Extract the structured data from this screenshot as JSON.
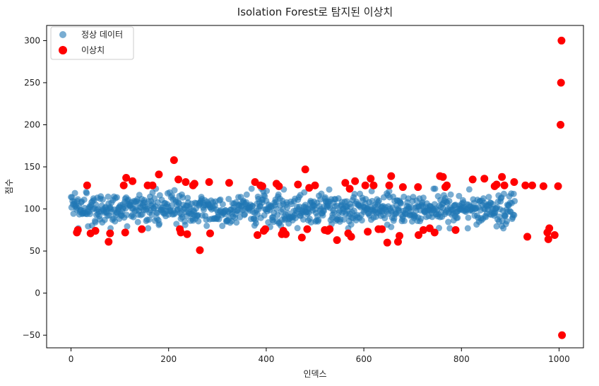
{
  "chart_data": {
    "type": "scatter",
    "title": "Isolation Forest로 탐지된 이상치",
    "xlabel": "인덱스",
    "ylabel": "점수",
    "xlim": [
      -50,
      1050
    ],
    "ylim": [
      -65,
      318
    ],
    "x_ticks": [
      0,
      200,
      400,
      600,
      800,
      1000
    ],
    "y_ticks": [
      -50,
      0,
      50,
      100,
      150,
      200,
      250,
      300
    ],
    "grid": false,
    "legend_position": "top-left",
    "normal_series": {
      "name": "정상 데이터",
      "color": "#1f77b4",
      "count": 910,
      "index_range": [
        0,
        909
      ],
      "score_mean": 100,
      "score_range": [
        77,
        124
      ]
    },
    "outlier_series": {
      "name": "이상치",
      "color": "#ff0000",
      "points": [
        [
          12,
          72
        ],
        [
          14,
          75
        ],
        [
          33,
          128
        ],
        [
          40,
          71
        ],
        [
          50,
          74
        ],
        [
          77,
          61
        ],
        [
          80,
          71
        ],
        [
          108,
          128
        ],
        [
          111,
          72
        ],
        [
          113,
          137
        ],
        [
          126,
          133
        ],
        [
          145,
          76
        ],
        [
          157,
          128
        ],
        [
          167,
          128
        ],
        [
          180,
          141
        ],
        [
          211,
          158
        ],
        [
          220,
          135
        ],
        [
          223,
          76
        ],
        [
          225,
          72
        ],
        [
          235,
          132
        ],
        [
          238,
          70
        ],
        [
          250,
          128
        ],
        [
          253,
          130
        ],
        [
          264,
          51
        ],
        [
          283,
          132
        ],
        [
          285,
          71
        ],
        [
          324,
          131
        ],
        [
          377,
          132
        ],
        [
          382,
          69
        ],
        [
          388,
          128
        ],
        [
          392,
          127
        ],
        [
          395,
          74
        ],
        [
          398,
          76
        ],
        [
          421,
          130
        ],
        [
          426,
          127
        ],
        [
          432,
          70
        ],
        [
          435,
          74
        ],
        [
          440,
          70
        ],
        [
          465,
          129
        ],
        [
          473,
          66
        ],
        [
          480,
          147
        ],
        [
          484,
          76
        ],
        [
          488,
          125
        ],
        [
          500,
          128
        ],
        [
          520,
          75
        ],
        [
          526,
          74
        ],
        [
          530,
          76
        ],
        [
          545,
          63
        ],
        [
          562,
          131
        ],
        [
          568,
          71
        ],
        [
          571,
          124
        ],
        [
          574,
          67
        ],
        [
          582,
          133
        ],
        [
          603,
          128
        ],
        [
          608,
          73
        ],
        [
          614,
          136
        ],
        [
          620,
          128
        ],
        [
          630,
          76
        ],
        [
          637,
          76
        ],
        [
          648,
          60
        ],
        [
          652,
          128
        ],
        [
          656,
          139
        ],
        [
          670,
          61
        ],
        [
          673,
          68
        ],
        [
          680,
          126
        ],
        [
          711,
          126
        ],
        [
          712,
          69
        ],
        [
          722,
          75
        ],
        [
          735,
          77
        ],
        [
          745,
          72
        ],
        [
          756,
          139
        ],
        [
          762,
          138
        ],
        [
          767,
          126
        ],
        [
          770,
          128
        ],
        [
          788,
          75
        ],
        [
          823,
          135
        ],
        [
          847,
          136
        ],
        [
          868,
          127
        ],
        [
          872,
          129
        ],
        [
          883,
          138
        ],
        [
          888,
          128
        ],
        [
          908,
          132
        ],
        [
          931,
          128
        ],
        [
          935,
          67
        ],
        [
          945,
          128
        ],
        [
          968,
          127
        ],
        [
          976,
          72
        ],
        [
          978,
          64
        ],
        [
          980,
          77
        ],
        [
          991,
          69
        ],
        [
          998,
          127
        ],
        [
          1003,
          200
        ],
        [
          1004,
          250
        ],
        [
          1005,
          300
        ],
        [
          1006,
          -50
        ]
      ]
    }
  }
}
